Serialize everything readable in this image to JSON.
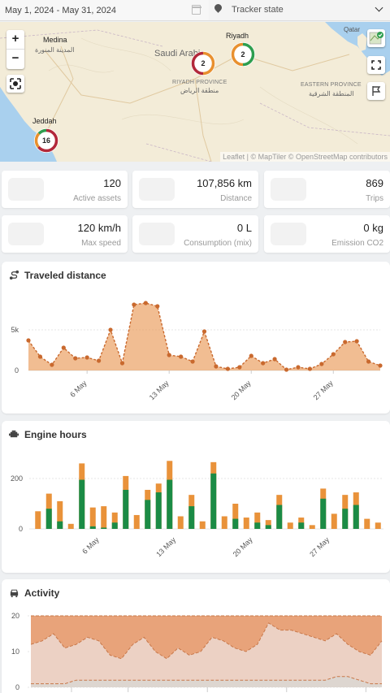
{
  "filters": {
    "date_range": "May 1, 2024 - May 31, 2024",
    "tracker_state": "Tracker state"
  },
  "map": {
    "labels": {
      "medina": "Medina",
      "medina_ar": "المدينة المنورة",
      "saudi": "Saudi Arabia",
      "riyadh": "Riyadh",
      "riyadh_prov": "RIYADH PROVINCE",
      "riyadh_prov_ar": "منطقة الرياض",
      "eastern_prov": "EASTERN PROVINCE",
      "eastern_prov_ar": "المنطقة الشرقية",
      "jeddah": "Jeddah",
      "qatar": "Qatar"
    },
    "zoom_in": "+",
    "zoom_out": "−",
    "clusters": [
      {
        "count": "2",
        "place": "central"
      },
      {
        "count": "2",
        "place": "riyadh"
      },
      {
        "count": "16",
        "place": "jeddah"
      }
    ],
    "attribution": "Leaflet | © MapTiler © OpenStreetMap contributors",
    "colors": {
      "water": "#a9d0ee",
      "land": "#f3ecd8",
      "cluster_green": "#2e9e4f",
      "cluster_orange": "#e8902f",
      "cluster_red": "#b2283a"
    }
  },
  "stats": [
    {
      "value": "120",
      "label": "Active assets"
    },
    {
      "value": "107,856 km",
      "label": "Distance"
    },
    {
      "value": "869",
      "label": "Trips"
    },
    {
      "value": "120 km/h",
      "label": "Max speed"
    },
    {
      "value": "0 L",
      "label": "Consumption (mix)"
    },
    {
      "value": "0 kg",
      "label": "Emission CO2"
    }
  ],
  "charts": {
    "distance_title": "Traveled distance",
    "engine_title": "Engine hours",
    "activity_title": "Activity"
  },
  "chart_data": [
    {
      "type": "area",
      "title": "Traveled distance",
      "x": [
        "May 1",
        "May 2",
        "May 3",
        "May 4",
        "May 5",
        "May 6",
        "May 7",
        "May 8",
        "May 9",
        "May 10",
        "May 11",
        "May 12",
        "May 13",
        "May 14",
        "May 15",
        "May 16",
        "May 17",
        "May 18",
        "May 19",
        "May 20",
        "May 21",
        "May 22",
        "May 23",
        "May 24",
        "May 25",
        "May 26",
        "May 27",
        "May 28",
        "May 29",
        "May 30",
        "May 31"
      ],
      "x_ticks": [
        "6 May",
        "13 May",
        "20 May",
        "27 May"
      ],
      "values": [
        3700,
        1700,
        700,
        2800,
        1500,
        1600,
        1200,
        5000,
        900,
        8100,
        8300,
        7900,
        1900,
        1700,
        1100,
        4800,
        500,
        200,
        400,
        1800,
        900,
        1400,
        100,
        400,
        200,
        800,
        2000,
        3500,
        3600,
        1100,
        600
      ],
      "y_ticks": [
        "0",
        "5k"
      ],
      "ylim": [
        0,
        9000
      ],
      "color": "#e8914a"
    },
    {
      "type": "bar",
      "title": "Engine hours",
      "x_ticks": [
        "6 May",
        "13 May",
        "20 May",
        "27 May"
      ],
      "series": [
        {
          "values": [
            0,
            80,
            30,
            0,
            195,
            10,
            5,
            25,
            155,
            0,
            115,
            145,
            195,
            0,
            90,
            0,
            220,
            0,
            40,
            0,
            25,
            15,
            95,
            0,
            25,
            0,
            120,
            0,
            80,
            95,
            0,
            0
          ]
        },
        {
          "values": [
            70,
            140,
            110,
            20,
            260,
            85,
            90,
            65,
            210,
            55,
            155,
            180,
            270,
            50,
            135,
            30,
            265,
            50,
            100,
            45,
            65,
            35,
            135,
            25,
            45,
            15,
            160,
            60,
            135,
            145,
            40,
            25
          ]
        }
      ],
      "y_ticks": [
        "0",
        "200"
      ],
      "ylim": [
        0,
        300
      ],
      "colors": {
        "green": "#1b8b45",
        "orange": "#e9923a"
      }
    },
    {
      "type": "area",
      "title": "Activity",
      "y_ticks": [
        "0",
        "10",
        "20"
      ],
      "ylim": [
        0,
        20
      ],
      "series": [
        {
          "values": [
            20,
            20,
            20,
            20,
            20,
            20,
            20,
            20,
            20,
            20,
            20,
            20,
            20,
            20,
            20,
            20,
            20,
            20,
            20,
            20,
            20,
            20,
            20,
            20,
            20,
            20,
            20,
            20,
            20,
            20,
            20,
            20
          ]
        },
        {
          "values": [
            12,
            13,
            15,
            11,
            12,
            14,
            13,
            9,
            8,
            12,
            14,
            10,
            8,
            11,
            9,
            10,
            14,
            13,
            11,
            10,
            12,
            18,
            16,
            16,
            15,
            14,
            13,
            15,
            12,
            10,
            9,
            13
          ]
        },
        {
          "values": [
            1,
            1,
            1,
            1,
            2,
            2,
            2,
            2,
            2,
            2,
            2,
            2,
            2,
            2,
            2,
            2,
            2,
            2,
            2,
            2,
            2,
            2,
            2,
            2,
            2,
            2,
            2,
            3,
            3,
            2,
            1,
            1
          ]
        }
      ],
      "colors": {
        "top": "#e8a37a",
        "mid": "#ecd1c4",
        "bottom": "#ddd6d0",
        "line": "#c8784a"
      }
    }
  ]
}
